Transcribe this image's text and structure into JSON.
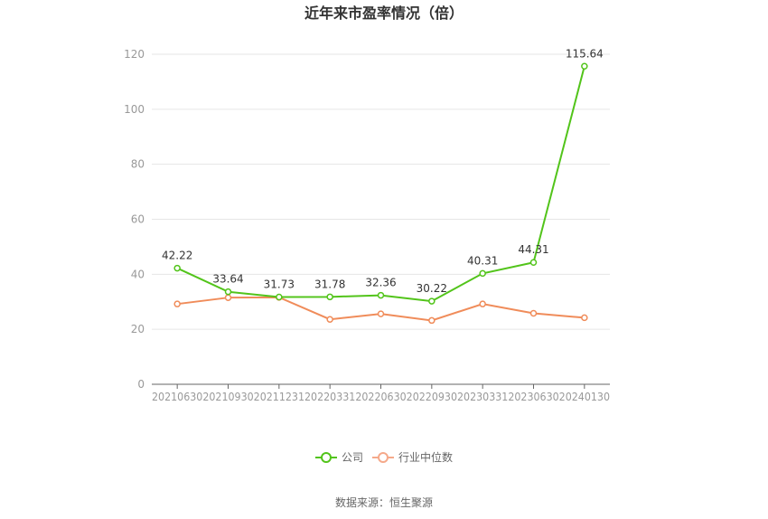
{
  "chart_data": {
    "type": "line",
    "title": "近年来市盈率情况（倍）",
    "categories": [
      "20210630",
      "20210930",
      "20211231",
      "20220331",
      "20220630",
      "20220930",
      "20230331",
      "20230630",
      "20240130"
    ],
    "series": [
      {
        "name": "公司",
        "color": "#52c41a",
        "values": [
          42.22,
          33.64,
          31.73,
          31.78,
          32.36,
          30.22,
          40.31,
          44.31,
          115.64
        ],
        "labels": [
          "42.22",
          "33.64",
          "31.73",
          "31.78",
          "32.36",
          "30.22",
          "40.31",
          "44.31",
          "115.64"
        ]
      },
      {
        "name": "行业中位数",
        "color": "#f08c5a",
        "values": [
          29.2,
          31.5,
          31.6,
          23.6,
          25.6,
          23.2,
          29.2,
          25.8,
          24.2
        ]
      }
    ],
    "yticks": [
      "0",
      "20",
      "40",
      "60",
      "80",
      "100",
      "120"
    ],
    "ylim": [
      0,
      120
    ],
    "grid": true,
    "legend": "bottom-center"
  },
  "footer": {
    "source": "数据来源：恒生聚源"
  }
}
